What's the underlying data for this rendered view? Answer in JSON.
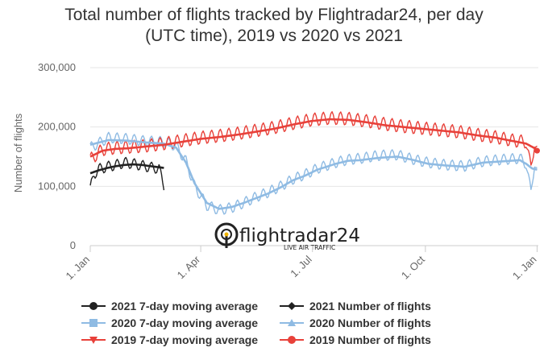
{
  "title": {
    "line1": "Total number of flights tracked by Flightradar24, per day",
    "line2": "(UTC time), 2019 vs 2020 vs 2021"
  },
  "chart_data": {
    "type": "line",
    "ylabel": "Number of flights",
    "ylim": [
      0,
      300000
    ],
    "yticks": [
      0,
      100000,
      200000,
      300000
    ],
    "ytick_labels": [
      "0",
      "100,000",
      "200,000",
      "300,000"
    ],
    "xlim": [
      0,
      365
    ],
    "xticks": [
      0,
      90,
      181,
      273,
      364
    ],
    "xtick_labels": [
      "1. Jan",
      "1. Apr",
      "1. Jul",
      "1. Oct",
      "1. Jan"
    ],
    "colors": {
      "2021": "#222222",
      "2020": "#8fbbe3",
      "2019": "#e8413a"
    },
    "series": [
      {
        "name": "2021 7-day moving average",
        "color": "#222222",
        "kind": "avg",
        "points": [
          [
            0,
            122000
          ],
          [
            7,
            127000
          ],
          [
            14,
            131000
          ],
          [
            21,
            134000
          ],
          [
            28,
            136000
          ],
          [
            35,
            137000
          ],
          [
            42,
            136000
          ],
          [
            49,
            134000
          ],
          [
            56,
            132000
          ],
          [
            60,
            131000
          ]
        ]
      },
      {
        "name": "2021 Number of flights",
        "color": "#222222",
        "kind": "daily",
        "weekly_amp": 9000,
        "points": [
          [
            0,
            95000
          ],
          [
            3,
            120000
          ],
          [
            7,
            129000
          ],
          [
            14,
            133000
          ],
          [
            21,
            136000
          ],
          [
            28,
            140000
          ],
          [
            35,
            138000
          ],
          [
            42,
            135000
          ],
          [
            49,
            132000
          ],
          [
            56,
            130000
          ],
          [
            60,
            102000
          ]
        ]
      },
      {
        "name": "2020 7-day moving average",
        "color": "#8fbbe3",
        "kind": "avg",
        "points": [
          [
            0,
            170000
          ],
          [
            15,
            178000
          ],
          [
            30,
            177000
          ],
          [
            45,
            174000
          ],
          [
            60,
            172000
          ],
          [
            70,
            165000
          ],
          [
            78,
            140000
          ],
          [
            85,
            105000
          ],
          [
            95,
            72000
          ],
          [
            105,
            62000
          ],
          [
            115,
            65000
          ],
          [
            125,
            72000
          ],
          [
            135,
            80000
          ],
          [
            145,
            88000
          ],
          [
            155,
            98000
          ],
          [
            165,
            110000
          ],
          [
            175,
            118000
          ],
          [
            185,
            128000
          ],
          [
            200,
            138000
          ],
          [
            210,
            143000
          ],
          [
            220,
            144000
          ],
          [
            235,
            148000
          ],
          [
            250,
            150000
          ],
          [
            262,
            145000
          ],
          [
            275,
            138000
          ],
          [
            290,
            135000
          ],
          [
            305,
            133000
          ],
          [
            320,
            140000
          ],
          [
            335,
            142000
          ],
          [
            350,
            144000
          ],
          [
            355,
            138000
          ],
          [
            360,
            130000
          ],
          [
            364,
            128000
          ]
        ]
      },
      {
        "name": "2020 Number of flights",
        "color": "#8fbbe3",
        "kind": "daily",
        "weekly_amp": 9000,
        "points": [
          [
            0,
            165000
          ],
          [
            15,
            182000
          ],
          [
            30,
            180000
          ],
          [
            45,
            176000
          ],
          [
            60,
            175000
          ],
          [
            70,
            168000
          ],
          [
            78,
            142000
          ],
          [
            85,
            100000
          ],
          [
            95,
            68000
          ],
          [
            105,
            60000
          ],
          [
            115,
            64000
          ],
          [
            125,
            72000
          ],
          [
            135,
            82000
          ],
          [
            145,
            90000
          ],
          [
            155,
            100000
          ],
          [
            165,
            112000
          ],
          [
            175,
            120000
          ],
          [
            185,
            130000
          ],
          [
            200,
            140000
          ],
          [
            210,
            145000
          ],
          [
            220,
            147000
          ],
          [
            235,
            152000
          ],
          [
            250,
            153000
          ],
          [
            262,
            146000
          ],
          [
            275,
            140000
          ],
          [
            290,
            136000
          ],
          [
            305,
            134000
          ],
          [
            320,
            142000
          ],
          [
            335,
            145000
          ],
          [
            350,
            147000
          ],
          [
            355,
            138000
          ],
          [
            359,
            90000
          ],
          [
            362,
            140000
          ],
          [
            364,
            125000
          ]
        ]
      },
      {
        "name": "2019 7-day moving average",
        "color": "#e8413a",
        "kind": "avg",
        "points": [
          [
            0,
            150000
          ],
          [
            10,
            160000
          ],
          [
            20,
            163000
          ],
          [
            30,
            164000
          ],
          [
            45,
            167000
          ],
          [
            60,
            170000
          ],
          [
            75,
            175000
          ],
          [
            90,
            180000
          ],
          [
            105,
            183000
          ],
          [
            120,
            187000
          ],
          [
            135,
            192000
          ],
          [
            150,
            197000
          ],
          [
            165,
            204000
          ],
          [
            180,
            210000
          ],
          [
            195,
            213000
          ],
          [
            210,
            212000
          ],
          [
            225,
            208000
          ],
          [
            240,
            203000
          ],
          [
            255,
            200000
          ],
          [
            270,
            197000
          ],
          [
            285,
            194000
          ],
          [
            300,
            191000
          ],
          [
            315,
            186000
          ],
          [
            330,
            182000
          ],
          [
            345,
            176000
          ],
          [
            355,
            172000
          ],
          [
            364,
            162000
          ]
        ]
      },
      {
        "name": "2019 Number of flights",
        "color": "#e8413a",
        "kind": "daily",
        "weekly_amp": 11000,
        "points": [
          [
            0,
            145000
          ],
          [
            10,
            162000
          ],
          [
            20,
            165000
          ],
          [
            30,
            166000
          ],
          [
            45,
            168000
          ],
          [
            60,
            172000
          ],
          [
            75,
            177000
          ],
          [
            90,
            182000
          ],
          [
            105,
            185000
          ],
          [
            120,
            189000
          ],
          [
            135,
            194000
          ],
          [
            150,
            199000
          ],
          [
            165,
            206000
          ],
          [
            180,
            212000
          ],
          [
            195,
            215000
          ],
          [
            210,
            214000
          ],
          [
            225,
            210000
          ],
          [
            240,
            205000
          ],
          [
            255,
            201000
          ],
          [
            270,
            198000
          ],
          [
            285,
            195000
          ],
          [
            300,
            192000
          ],
          [
            315,
            187000
          ],
          [
            330,
            183000
          ],
          [
            345,
            177000
          ],
          [
            355,
            175000
          ],
          [
            359,
            130000
          ],
          [
            362,
            175000
          ],
          [
            364,
            160000
          ]
        ]
      }
    ],
    "legend": [
      {
        "label": "2021 7-day moving average",
        "color": "#222222",
        "marker": "circle"
      },
      {
        "label": "2021 Number of flights",
        "color": "#222222",
        "marker": "diamond"
      },
      {
        "label": "2020 7-day moving average",
        "color": "#8fbbe3",
        "marker": "square"
      },
      {
        "label": "2020 Number of flights",
        "color": "#8fbbe3",
        "marker": "triangle"
      },
      {
        "label": "2019 7-day moving average",
        "color": "#e8413a",
        "marker": "triangle-down"
      },
      {
        "label": "2019 Number of flights",
        "color": "#e8413a",
        "marker": "circle"
      }
    ]
  },
  "watermark": {
    "brand": "flightradar24",
    "tagline": "LIVE AIR TRAFFIC"
  }
}
